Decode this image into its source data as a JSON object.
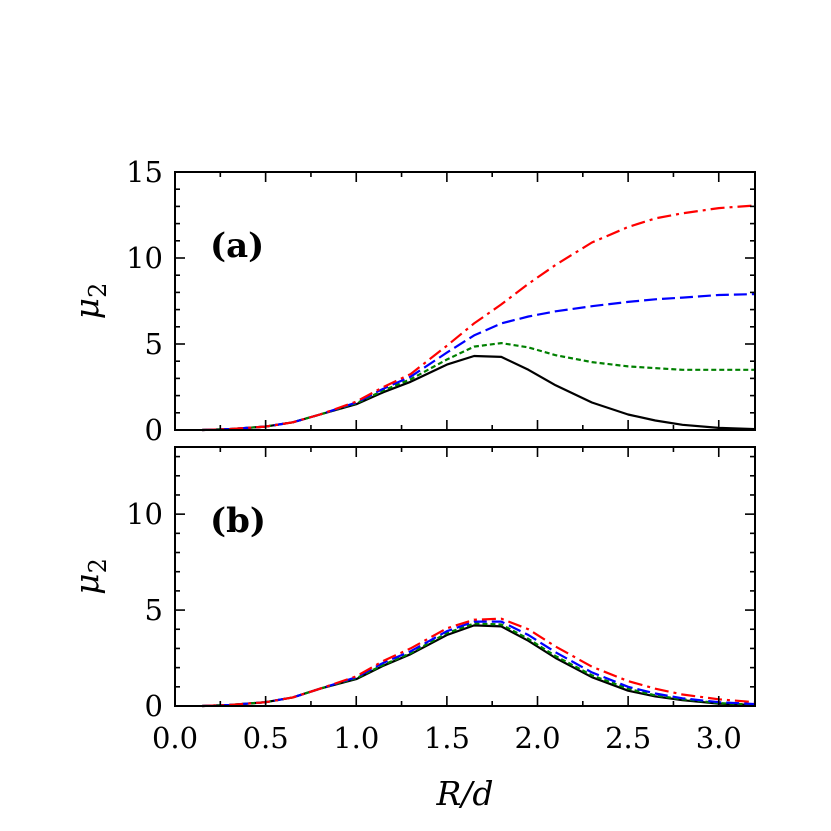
{
  "chart_data": [
    {
      "type": "line",
      "panel_label": "(a)",
      "xlabel": "R/d",
      "ylabel": "μ2",
      "xlim": [
        0.0,
        3.2
      ],
      "ylim": [
        0,
        15
      ],
      "xticks": [
        0.0,
        0.5,
        1.0,
        1.5,
        2.0,
        2.5,
        3.0
      ],
      "yticks": [
        0,
        5,
        10,
        15
      ],
      "x_tick_labels_shown": false,
      "grid": false,
      "legend": false,
      "series": [
        {
          "color": "#000000",
          "linestyle": "solid",
          "x": [
            0.15,
            0.3,
            0.5,
            0.65,
            0.8,
            1.0,
            1.15,
            1.3,
            1.5,
            1.65,
            1.8,
            1.95,
            2.1,
            2.3,
            2.5,
            2.65,
            2.8,
            3.0,
            3.2
          ],
          "y": [
            0.0,
            0.05,
            0.2,
            0.45,
            0.9,
            1.5,
            2.2,
            2.8,
            3.8,
            4.3,
            4.25,
            3.5,
            2.6,
            1.6,
            0.9,
            0.55,
            0.3,
            0.12,
            0.05
          ]
        },
        {
          "color": "#008000",
          "linestyle": "dotted",
          "x": [
            0.15,
            0.3,
            0.5,
            0.65,
            0.8,
            1.0,
            1.15,
            1.3,
            1.5,
            1.65,
            1.8,
            1.95,
            2.1,
            2.3,
            2.5,
            2.65,
            2.8,
            3.0,
            3.2
          ],
          "y": [
            0.0,
            0.05,
            0.2,
            0.45,
            0.9,
            1.55,
            2.3,
            2.95,
            4.1,
            4.85,
            5.05,
            4.8,
            4.35,
            3.95,
            3.7,
            3.6,
            3.5,
            3.5,
            3.5
          ]
        },
        {
          "color": "#0000ff",
          "linestyle": "dashed",
          "x": [
            0.15,
            0.3,
            0.5,
            0.65,
            0.8,
            1.0,
            1.15,
            1.3,
            1.5,
            1.65,
            1.8,
            1.95,
            2.1,
            2.3,
            2.5,
            2.65,
            2.8,
            3.0,
            3.2
          ],
          "y": [
            0.0,
            0.05,
            0.2,
            0.45,
            0.9,
            1.6,
            2.4,
            3.1,
            4.5,
            5.5,
            6.2,
            6.6,
            6.9,
            7.2,
            7.45,
            7.6,
            7.7,
            7.85,
            7.9
          ]
        },
        {
          "color": "#ff0000",
          "linestyle": "dashdot",
          "x": [
            0.15,
            0.3,
            0.5,
            0.65,
            0.8,
            1.0,
            1.15,
            1.3,
            1.5,
            1.65,
            1.8,
            1.95,
            2.1,
            2.3,
            2.5,
            2.65,
            2.8,
            3.0,
            3.2
          ],
          "y": [
            0.0,
            0.05,
            0.2,
            0.45,
            0.9,
            1.65,
            2.5,
            3.25,
            4.9,
            6.2,
            7.3,
            8.5,
            9.6,
            10.9,
            11.8,
            12.3,
            12.6,
            12.9,
            13.05
          ]
        }
      ]
    },
    {
      "type": "line",
      "panel_label": "(b)",
      "xlabel": "R/d",
      "ylabel": "μ2",
      "xlim": [
        0.0,
        3.2
      ],
      "ylim": [
        0,
        13.5
      ],
      "xticks": [
        0.0,
        0.5,
        1.0,
        1.5,
        2.0,
        2.5,
        3.0
      ],
      "yticks": [
        0,
        5,
        10
      ],
      "x_tick_labels_shown": true,
      "grid": false,
      "legend": false,
      "series": [
        {
          "color": "#000000",
          "linestyle": "solid",
          "x": [
            0.15,
            0.3,
            0.5,
            0.65,
            0.8,
            1.0,
            1.15,
            1.3,
            1.5,
            1.65,
            1.8,
            1.95,
            2.1,
            2.3,
            2.5,
            2.65,
            2.8,
            3.0,
            3.2
          ],
          "y": [
            0.0,
            0.05,
            0.2,
            0.45,
            0.9,
            1.4,
            2.1,
            2.7,
            3.7,
            4.2,
            4.15,
            3.4,
            2.5,
            1.5,
            0.8,
            0.5,
            0.3,
            0.12,
            0.05
          ]
        },
        {
          "color": "#008000",
          "linestyle": "dotted",
          "x": [
            0.15,
            0.3,
            0.5,
            0.65,
            0.8,
            1.0,
            1.15,
            1.3,
            1.5,
            1.65,
            1.8,
            1.95,
            2.1,
            2.3,
            2.5,
            2.65,
            2.8,
            3.0,
            3.2
          ],
          "y": [
            0.0,
            0.05,
            0.2,
            0.45,
            0.9,
            1.45,
            2.15,
            2.75,
            3.8,
            4.3,
            4.25,
            3.5,
            2.6,
            1.6,
            0.9,
            0.55,
            0.35,
            0.15,
            0.07
          ]
        },
        {
          "color": "#0000ff",
          "linestyle": "dashed",
          "x": [
            0.15,
            0.3,
            0.5,
            0.65,
            0.8,
            1.0,
            1.15,
            1.3,
            1.5,
            1.65,
            1.8,
            1.95,
            2.1,
            2.3,
            2.5,
            2.65,
            2.8,
            3.0,
            3.2
          ],
          "y": [
            0.0,
            0.05,
            0.2,
            0.45,
            0.9,
            1.5,
            2.25,
            2.85,
            3.9,
            4.4,
            4.4,
            3.7,
            2.8,
            1.75,
            1.0,
            0.65,
            0.4,
            0.2,
            0.1
          ]
        },
        {
          "color": "#ff0000",
          "linestyle": "dashdot",
          "x": [
            0.15,
            0.3,
            0.5,
            0.65,
            0.8,
            1.0,
            1.15,
            1.3,
            1.5,
            1.65,
            1.8,
            1.95,
            2.1,
            2.3,
            2.5,
            2.65,
            2.8,
            3.0,
            3.2
          ],
          "y": [
            0.0,
            0.05,
            0.2,
            0.45,
            0.9,
            1.55,
            2.35,
            3.0,
            4.05,
            4.5,
            4.55,
            4.0,
            3.1,
            2.05,
            1.3,
            0.9,
            0.6,
            0.35,
            0.2
          ]
        }
      ]
    }
  ]
}
